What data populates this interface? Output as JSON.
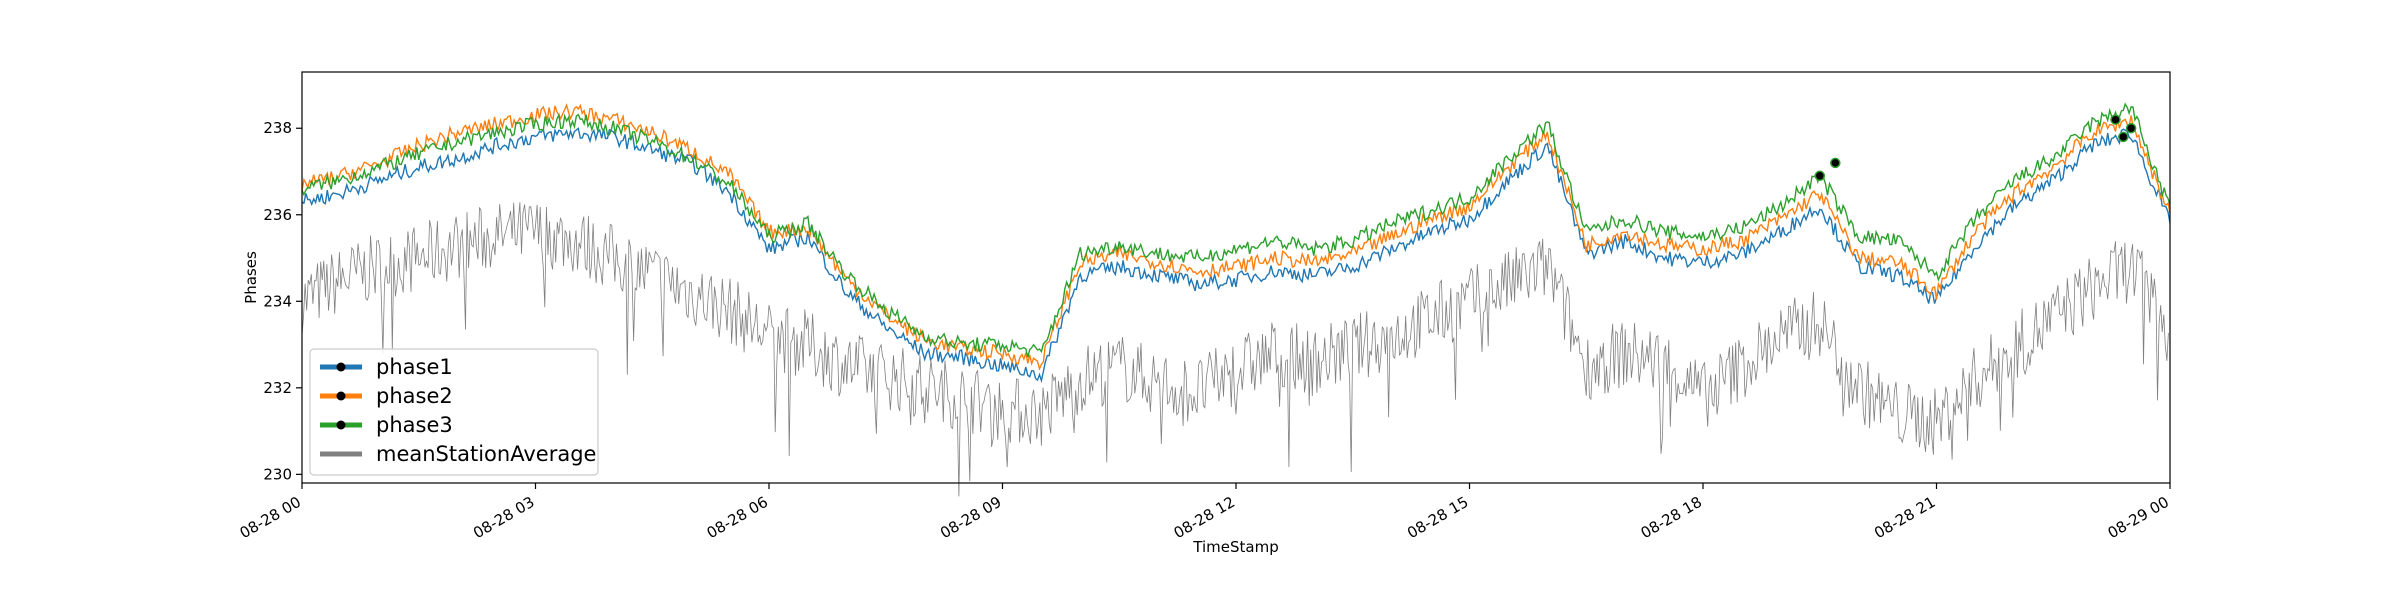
{
  "chart_data": {
    "type": "line",
    "title": "",
    "xlabel": "TimeStamp",
    "ylabel": "Phases",
    "x_range": [
      "08-28 00:00",
      "08-29 00:00"
    ],
    "ylim": [
      229.8,
      239.3
    ],
    "grid": false,
    "legend_position": "lower-left",
    "x_ticks": [
      "08-28 00",
      "08-28 03",
      "08-28 06",
      "08-28 09",
      "08-28 12",
      "08-28 15",
      "08-28 18",
      "08-28 21",
      "08-29 00"
    ],
    "y_ticks": [
      230,
      232,
      234,
      236,
      238
    ],
    "x": [
      "00:00",
      "00:30",
      "01:00",
      "01:30",
      "02:00",
      "02:30",
      "03:00",
      "03:30",
      "04:00",
      "04:30",
      "05:00",
      "05:30",
      "06:00",
      "06:30",
      "07:00",
      "07:30",
      "08:00",
      "08:30",
      "09:00",
      "09:30",
      "10:00",
      "10:30",
      "11:00",
      "11:30",
      "12:00",
      "12:30",
      "13:00",
      "13:30",
      "14:00",
      "14:30",
      "15:00",
      "15:30",
      "16:00",
      "16:30",
      "17:00",
      "17:30",
      "18:00",
      "18:30",
      "19:00",
      "19:30",
      "20:00",
      "20:30",
      "21:00",
      "21:30",
      "22:00",
      "22:30",
      "23:00",
      "23:30",
      "24:00"
    ],
    "series": [
      {
        "name": "phase1",
        "color": "#1f77b4",
        "values": [
          236.3,
          236.5,
          236.8,
          237.1,
          237.3,
          237.6,
          237.8,
          237.9,
          237.8,
          237.5,
          237.2,
          236.5,
          235.2,
          235.5,
          234.2,
          233.4,
          232.8,
          232.7,
          232.5,
          232.3,
          234.6,
          234.8,
          234.6,
          234.4,
          234.5,
          234.7,
          234.6,
          234.8,
          235.2,
          235.6,
          235.9,
          236.8,
          237.6,
          235.1,
          235.4,
          235.0,
          234.9,
          235.1,
          235.6,
          236.2,
          234.8,
          234.6,
          234.0,
          235.3,
          236.2,
          236.8,
          237.6,
          237.9,
          235.8
        ]
      },
      {
        "name": "phase2",
        "color": "#ff7f0e",
        "values": [
          236.7,
          236.9,
          237.2,
          237.6,
          237.9,
          238.1,
          238.3,
          238.4,
          238.2,
          237.9,
          237.5,
          236.9,
          235.6,
          235.7,
          234.5,
          233.7,
          233.1,
          232.9,
          232.8,
          232.6,
          234.9,
          235.1,
          234.9,
          234.7,
          234.8,
          235.0,
          234.9,
          235.1,
          235.5,
          235.9,
          236.2,
          237.1,
          237.9,
          235.3,
          235.6,
          235.3,
          235.2,
          235.4,
          235.9,
          236.5,
          235.0,
          234.9,
          234.2,
          235.6,
          236.5,
          237.1,
          237.9,
          238.2,
          236.0
        ]
      },
      {
        "name": "phase3",
        "color": "#2ca02c",
        "values": [
          236.6,
          236.8,
          237.1,
          237.4,
          237.7,
          237.9,
          238.1,
          238.2,
          238.0,
          237.7,
          237.3,
          236.7,
          235.5,
          235.8,
          234.6,
          233.8,
          233.2,
          233.0,
          233.0,
          232.8,
          235.1,
          235.3,
          235.1,
          235.0,
          235.2,
          235.4,
          235.2,
          235.4,
          235.8,
          236.1,
          236.4,
          237.3,
          238.1,
          235.6,
          235.9,
          235.6,
          235.5,
          235.7,
          236.2,
          236.9,
          235.5,
          235.4,
          234.6,
          235.9,
          236.8,
          237.3,
          238.1,
          238.5,
          236.1
        ]
      },
      {
        "name": "meanStationAverage",
        "color": "#808080",
        "values": [
          234.0,
          234.5,
          234.8,
          235.0,
          235.3,
          235.5,
          235.6,
          235.4,
          235.0,
          234.6,
          234.2,
          233.8,
          233.2,
          233.0,
          232.5,
          232.3,
          232.0,
          231.8,
          231.5,
          231.4,
          232.2,
          232.5,
          232.1,
          231.9,
          232.4,
          232.8,
          232.6,
          232.9,
          233.2,
          233.6,
          234.0,
          234.4,
          234.8,
          232.5,
          232.8,
          232.6,
          231.8,
          232.5,
          233.2,
          233.5,
          232.0,
          231.4,
          231.2,
          232.2,
          232.9,
          233.6,
          234.3,
          234.8,
          233.3
        ]
      }
    ],
    "highlight_points": [
      {
        "x": "19:30",
        "y": 236.9
      },
      {
        "x": "19:42",
        "y": 237.2
      },
      {
        "x": "23:18",
        "y": 238.2
      },
      {
        "x": "23:24",
        "y": 237.8
      },
      {
        "x": "23:30",
        "y": 238.0
      }
    ]
  }
}
